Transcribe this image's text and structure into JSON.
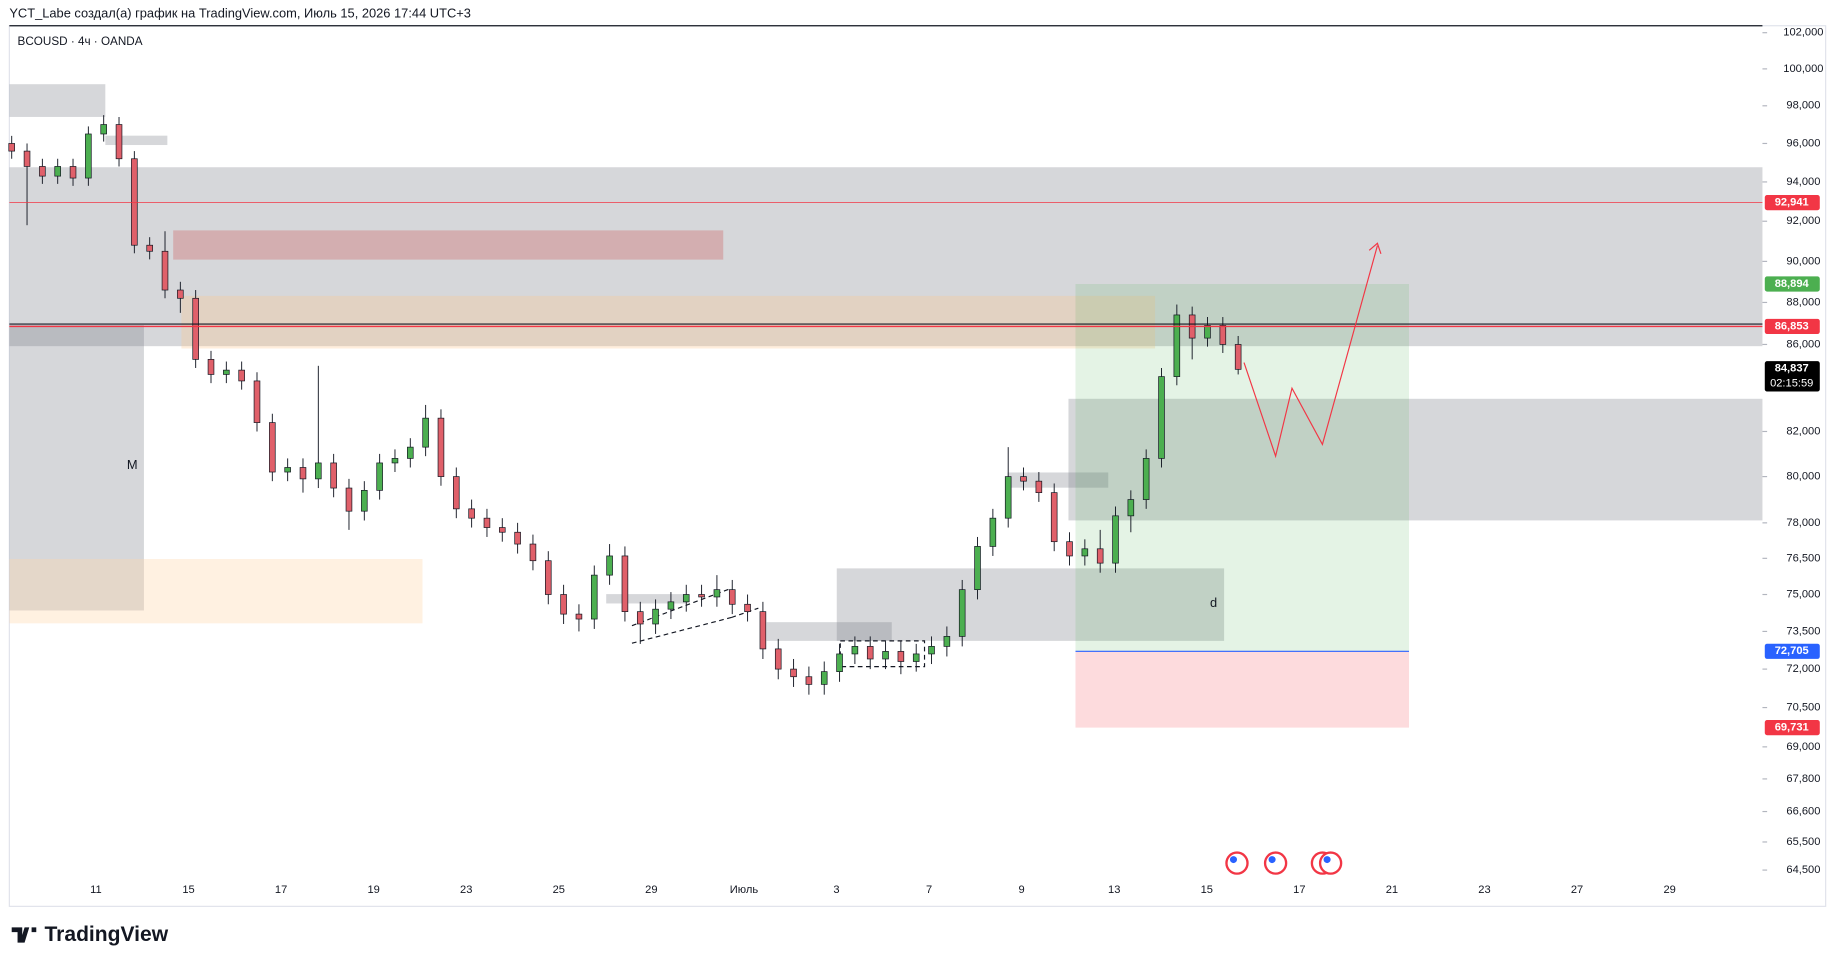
{
  "header": {
    "attribution": "YCT_Labe создал(а) график на TradingView.com, Июль 15, 2026 17:44 UTC+3"
  },
  "chart_data": {
    "type": "candlestick",
    "symbol": "BCOUSD · 4ч · OANDA",
    "open": [
      96000,
      95600,
      94800,
      94300,
      94800,
      94200,
      96500,
      97000,
      95200,
      90800,
      90500,
      88600,
      88200,
      85300,
      84600,
      84800,
      84300,
      82400,
      80200,
      80400,
      79900,
      80600,
      79500,
      78500,
      79400,
      80600,
      80800,
      81300,
      82600,
      80000,
      78600,
      78200,
      77800,
      77600,
      77100,
      76400,
      75000,
      74200,
      74000,
      75800,
      76600,
      74300,
      73800,
      74400,
      74700,
      75000,
      74900,
      75200,
      74600,
      74300,
      72800,
      72000,
      71700,
      71400,
      71900,
      72600,
      72900,
      72400,
      72700,
      72300,
      72600,
      72900,
      73300,
      75200,
      77000,
      78200,
      80000,
      79800,
      79300,
      77200,
      76600,
      76900,
      76300,
      78300,
      79000,
      80800,
      84500,
      87400,
      86300,
      86900,
      86000
    ],
    "high": [
      96400,
      96000,
      95200,
      95200,
      95200,
      96900,
      97500,
      97400,
      95600,
      91200,
      91500,
      89000,
      88600,
      85700,
      85200,
      85200,
      84700,
      82800,
      80800,
      80800,
      85000,
      81000,
      79900,
      79800,
      81000,
      81200,
      81700,
      83200,
      83000,
      80400,
      79000,
      78600,
      78200,
      78000,
      77500,
      76800,
      75400,
      74600,
      76200,
      77100,
      77000,
      74700,
      74800,
      75100,
      75400,
      75400,
      75800,
      75600,
      75000,
      74700,
      73200,
      72400,
      72100,
      72300,
      73000,
      73300,
      73300,
      73100,
      73100,
      73000,
      73300,
      73700,
      75600,
      77400,
      78600,
      81300,
      80400,
      80200,
      79700,
      77600,
      77300,
      77700,
      78700,
      79400,
      81200,
      84900,
      87900,
      87800,
      87300,
      87300,
      86400
    ],
    "low": [
      95200,
      91800,
      93900,
      93900,
      93800,
      93800,
      96100,
      94800,
      90400,
      90100,
      88200,
      87500,
      84900,
      84200,
      84200,
      83900,
      82000,
      79800,
      79800,
      79300,
      79500,
      79100,
      77700,
      78100,
      79000,
      80200,
      80400,
      80900,
      79600,
      78200,
      77800,
      77400,
      77200,
      76700,
      76000,
      74600,
      73800,
      73500,
      73600,
      75400,
      73900,
      73000,
      73400,
      74000,
      74300,
      74500,
      74500,
      74200,
      73900,
      72400,
      71600,
      71300,
      71000,
      71000,
      71500,
      72200,
      72000,
      72000,
      71800,
      71900,
      72200,
      72500,
      72900,
      74800,
      76600,
      77800,
      79400,
      78900,
      76800,
      76200,
      76200,
      75900,
      75900,
      77600,
      78600,
      80400,
      84100,
      85300,
      85900,
      85600,
      84600
    ],
    "close": [
      95600,
      94800,
      94300,
      94800,
      94200,
      96500,
      97000,
      95200,
      90800,
      90500,
      88600,
      88200,
      85300,
      84600,
      84800,
      84300,
      82400,
      80200,
      80400,
      79900,
      80600,
      79500,
      78500,
      79400,
      80600,
      80800,
      81300,
      82600,
      80000,
      78600,
      78200,
      77800,
      77600,
      77100,
      76400,
      75000,
      74200,
      74000,
      75800,
      76600,
      74300,
      73800,
      74400,
      74700,
      75000,
      74900,
      75200,
      74600,
      74300,
      72800,
      72000,
      71700,
      71400,
      71900,
      72600,
      72900,
      72400,
      72700,
      72300,
      72600,
      72900,
      73300,
      75200,
      77000,
      78200,
      80000,
      79800,
      79300,
      77200,
      76600,
      76900,
      76300,
      78300,
      79000,
      80800,
      84500,
      87400,
      86300,
      86900,
      86000,
      84837
    ],
    "colors": {
      "up": "#4caf50",
      "down": "#e0606a"
    },
    "ylim": [
      64170,
      102390
    ],
    "log_scale": true,
    "yticks": [
      {
        "value": 102000,
        "label": "102,000"
      },
      {
        "value": 100000,
        "label": "100,000"
      },
      {
        "value": 98000,
        "label": "98,000"
      },
      {
        "value": 96000,
        "label": "96,000"
      },
      {
        "value": 94000,
        "label": "94,000"
      },
      {
        "value": 92000,
        "label": "92,000"
      },
      {
        "value": 90000,
        "label": "90,000"
      },
      {
        "value": 88000,
        "label": "88,000"
      },
      {
        "value": 86000,
        "label": "86,000"
      },
      {
        "value": 82000,
        "label": "82,000"
      },
      {
        "value": 80000,
        "label": "80,000"
      },
      {
        "value": 78000,
        "label": "78,000"
      },
      {
        "value": 76500,
        "label": "76,500"
      },
      {
        "value": 75000,
        "label": "75,000"
      },
      {
        "value": 73500,
        "label": "73,500"
      },
      {
        "value": 72000,
        "label": "72,000"
      },
      {
        "value": 70500,
        "label": "70,500"
      },
      {
        "value": 69000,
        "label": "69,000"
      },
      {
        "value": 67800,
        "label": "67,800"
      },
      {
        "value": 66600,
        "label": "66,600"
      },
      {
        "value": 65500,
        "label": "65,500"
      },
      {
        "value": 64500,
        "label": "64,500"
      }
    ],
    "x_labels": [
      "11",
      "15",
      "17",
      "19",
      "23",
      "25",
      "29",
      "Июль",
      "3",
      "7",
      "9",
      "13",
      "15",
      "17",
      "21",
      "23",
      "27",
      "29"
    ],
    "price_lines": [
      {
        "value": 92941,
        "label": "92,941",
        "color": "#f23645"
      },
      {
        "value": 88894,
        "label": "88,894",
        "color": "#4caf50"
      },
      {
        "value": 86853,
        "label": "86,853",
        "color": "#f23645"
      },
      {
        "value": 84837,
        "label": "84,837",
        "color": "#000000"
      },
      {
        "value": 72705,
        "label": "72,705",
        "color": "#2962ff"
      },
      {
        "value": 69731,
        "label": "69,731",
        "color": "#f23645"
      }
    ],
    "countdown": "02:15:59",
    "annotations": [
      "M",
      "d"
    ]
  },
  "footer": {
    "logo": "TradingView"
  }
}
